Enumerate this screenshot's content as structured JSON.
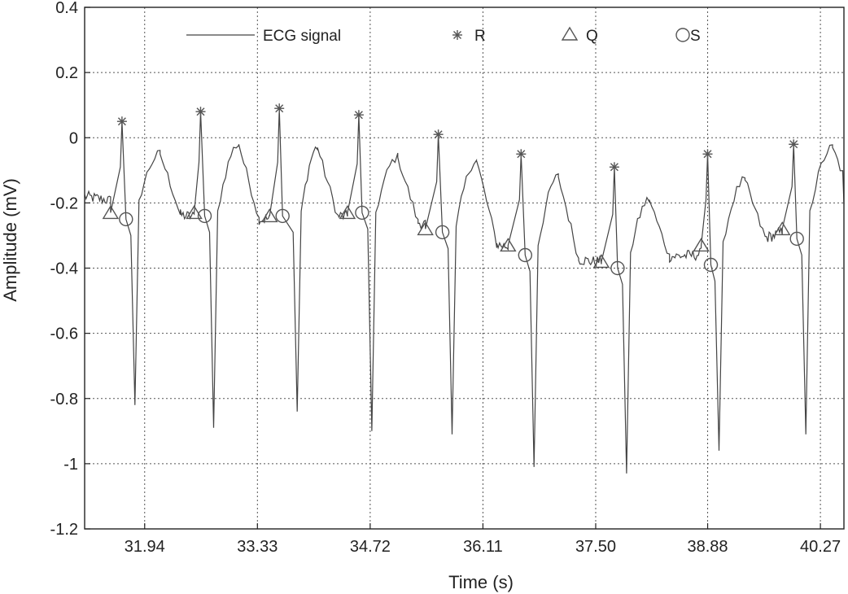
{
  "chart_data": {
    "type": "line",
    "xlabel": "Time (s)",
    "ylabel": "Amplitude (mV)",
    "xlim": [
      31.2,
      40.56
    ],
    "ylim": [
      -1.2,
      0.4
    ],
    "xticks": [
      "31.94",
      "33.33",
      "34.72",
      "36.11",
      "37.50",
      "38.88",
      "40.27"
    ],
    "yticks": [
      "-1.2",
      "-1",
      "-0.8",
      "-0.6",
      "-0.4",
      "-0.2",
      "0",
      "0.2",
      "0.4"
    ],
    "grid": true,
    "legend": {
      "placement": "top",
      "entries": [
        {
          "label": "ECG signal",
          "marker": "line"
        },
        {
          "label": "R",
          "marker": "asterisk"
        },
        {
          "label": "Q",
          "marker": "triangle"
        },
        {
          "label": "S",
          "marker": "circle"
        }
      ]
    },
    "r_peaks": [
      {
        "t": 31.66,
        "v": 0.05
      },
      {
        "t": 32.63,
        "v": 0.08
      },
      {
        "t": 33.6,
        "v": 0.09
      },
      {
        "t": 34.58,
        "v": 0.07
      },
      {
        "t": 35.56,
        "v": 0.01
      },
      {
        "t": 36.58,
        "v": -0.05
      },
      {
        "t": 37.73,
        "v": -0.09
      },
      {
        "t": 38.88,
        "v": -0.05
      },
      {
        "t": 39.94,
        "v": -0.02
      }
    ],
    "q_points": [
      {
        "t": 31.52,
        "v": -0.23
      },
      {
        "t": 32.55,
        "v": -0.23
      },
      {
        "t": 33.48,
        "v": -0.24
      },
      {
        "t": 34.44,
        "v": -0.23
      },
      {
        "t": 35.4,
        "v": -0.28
      },
      {
        "t": 36.42,
        "v": -0.33
      },
      {
        "t": 37.57,
        "v": -0.38
      },
      {
        "t": 38.8,
        "v": -0.33
      },
      {
        "t": 39.8,
        "v": -0.28
      }
    ],
    "s_points": [
      {
        "t": 31.71,
        "v": -0.25
      },
      {
        "t": 32.68,
        "v": -0.24
      },
      {
        "t": 33.64,
        "v": -0.24
      },
      {
        "t": 34.62,
        "v": -0.23
      },
      {
        "t": 35.61,
        "v": -0.29
      },
      {
        "t": 36.63,
        "v": -0.36
      },
      {
        "t": 37.77,
        "v": -0.4
      },
      {
        "t": 38.92,
        "v": -0.39
      },
      {
        "t": 39.98,
        "v": -0.31
      }
    ],
    "s_troughs": [
      {
        "t": 31.82,
        "v": -0.82
      },
      {
        "t": 32.79,
        "v": -0.89
      },
      {
        "t": 33.82,
        "v": -0.84
      },
      {
        "t": 34.74,
        "v": -0.9
      },
      {
        "t": 35.73,
        "v": -0.91
      },
      {
        "t": 36.74,
        "v": -1.01
      },
      {
        "t": 37.88,
        "v": -1.03
      },
      {
        "t": 39.02,
        "v": -0.96
      },
      {
        "t": 40.09,
        "v": -0.91
      }
    ],
    "t_waves": [
      {
        "t": 32.13,
        "v": -0.05
      },
      {
        "t": 33.1,
        "v": -0.02
      },
      {
        "t": 34.07,
        "v": -0.03
      },
      {
        "t": 35.06,
        "v": -0.06
      },
      {
        "t": 36.03,
        "v": -0.07
      },
      {
        "t": 37.04,
        "v": -0.12
      },
      {
        "t": 38.16,
        "v": -0.19
      },
      {
        "t": 39.34,
        "v": -0.13
      },
      {
        "t": 40.42,
        "v": -0.03
      }
    ],
    "baseline": [
      {
        "t": 31.2,
        "v": -0.18
      },
      {
        "t": 31.45,
        "v": -0.19
      },
      {
        "t": 32.45,
        "v": -0.24
      },
      {
        "t": 33.4,
        "v": -0.25
      },
      {
        "t": 34.38,
        "v": -0.24
      },
      {
        "t": 35.33,
        "v": -0.26
      },
      {
        "t": 36.33,
        "v": -0.33
      },
      {
        "t": 37.45,
        "v": -0.38
      },
      {
        "t": 38.72,
        "v": -0.36
      },
      {
        "t": 39.7,
        "v": -0.3
      },
      {
        "t": 40.56,
        "v": -0.19
      }
    ]
  }
}
